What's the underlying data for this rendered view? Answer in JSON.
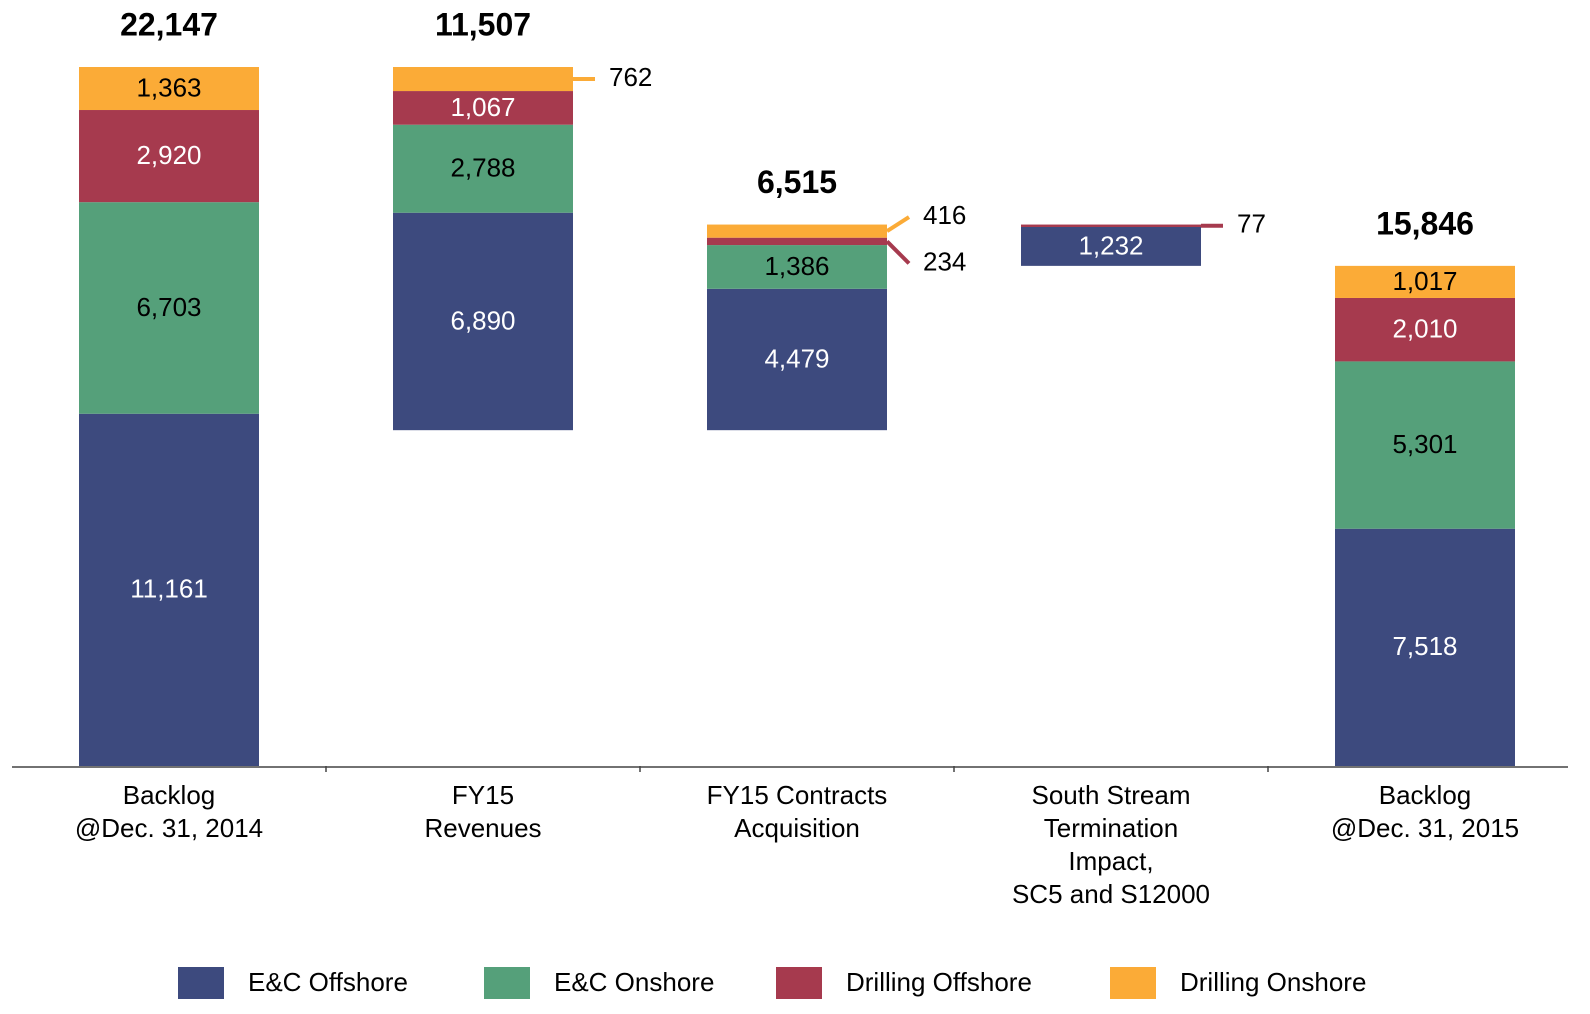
{
  "chart_data": {
    "type": "waterfall",
    "categories": [
      [
        "Backlog",
        "@Dec. 31, 2014"
      ],
      [
        "FY15",
        "Revenues"
      ],
      [
        "FY15 Contracts",
        "Acquisition"
      ],
      [
        "South Stream",
        "Termination",
        "Impact,",
        "SC5 and S12000"
      ],
      [
        "Backlog",
        "@Dec. 31, 2015"
      ]
    ],
    "measure": [
      "total",
      "decrease",
      "increase",
      "decrease",
      "total"
    ],
    "totals": [
      22147,
      11507,
      6515,
      null,
      15846
    ],
    "totals_labels": [
      "22,147",
      "11,507",
      "6,515",
      null,
      "15,846"
    ],
    "series": [
      {
        "name": "E&C Offshore",
        "color": "#3d4a7e",
        "label_color": "#ffffff",
        "values": [
          11161,
          6890,
          4479,
          1232,
          7518
        ],
        "value_labels": [
          "11,161",
          "6,890",
          "4,479",
          "1,232",
          "7,518"
        ]
      },
      {
        "name": "E&C Onshore",
        "color": "#55a07a",
        "label_color": "#000000",
        "values": [
          6703,
          2788,
          1386,
          null,
          5301
        ],
        "value_labels": [
          "6,703",
          "2,788",
          "1,386",
          null,
          "5,301"
        ]
      },
      {
        "name": "Drilling Offshore",
        "color": "#a63a4e",
        "label_color": "#ffffff",
        "values": [
          2920,
          1067,
          234,
          77,
          2010
        ],
        "value_labels": [
          "2,920",
          "1,067",
          "234",
          "77",
          "2,010"
        ]
      },
      {
        "name": "Drilling Onshore",
        "color": "#fbab37",
        "label_color": "#000000",
        "values": [
          1363,
          762,
          416,
          null,
          1017
        ],
        "value_labels": [
          "1,363",
          "762",
          "416",
          null,
          "1,017"
        ]
      }
    ],
    "legend": "bottom"
  }
}
